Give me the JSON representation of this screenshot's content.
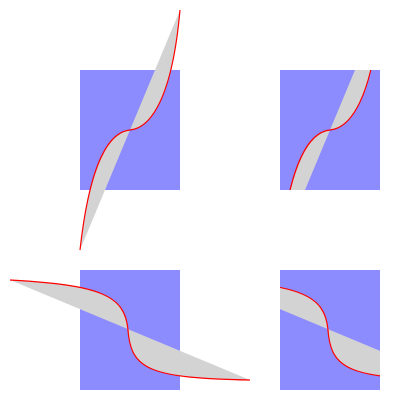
{
  "colors": {
    "background": "#ffffff",
    "square_fill": "#8c8cff",
    "band_fill": "#d3d3d3",
    "curve_stroke": "#ff0000"
  },
  "panels": [
    {
      "id": "top-left",
      "clipped": false,
      "orientation": "rising"
    },
    {
      "id": "top-right",
      "clipped": true,
      "orientation": "rising"
    },
    {
      "id": "bottom-left",
      "clipped": false,
      "orientation": "falling"
    },
    {
      "id": "bottom-right",
      "clipped": true,
      "orientation": "falling"
    }
  ]
}
